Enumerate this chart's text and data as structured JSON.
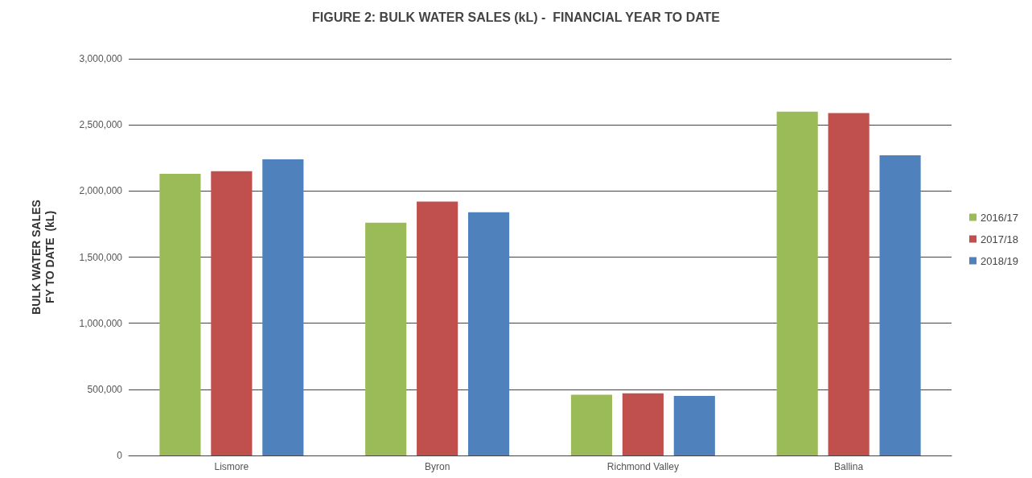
{
  "chart_data": {
    "type": "bar",
    "title": "FIGURE 2: BULK WATER SALES (kL) -  FINANCIAL YEAR TO DATE",
    "ylabel": "BULK WATER SALES\nFY TO DATE  (kL)",
    "categories": [
      "Lismore",
      "Byron",
      "Richmond Valley",
      "Ballina"
    ],
    "series": [
      {
        "name": "2016/17",
        "color": "#9bbb59",
        "values": [
          2130000,
          1760000,
          460000,
          2600000
        ]
      },
      {
        "name": "2017/18",
        "color": "#c0504d",
        "values": [
          2150000,
          1920000,
          470000,
          2590000
        ]
      },
      {
        "name": "2018/19",
        "color": "#4f81bd",
        "values": [
          2240000,
          1840000,
          450000,
          2270000
        ]
      }
    ],
    "ylim": [
      0,
      3000000
    ],
    "yticks": [
      {
        "value": 0,
        "label": "0"
      },
      {
        "value": 500000,
        "label": "500,000"
      },
      {
        "value": 1000000,
        "label": "1,000,000"
      },
      {
        "value": 1500000,
        "label": "1,500,000"
      },
      {
        "value": 2000000,
        "label": "2,000,000"
      },
      {
        "value": 2500000,
        "label": "2,500,000"
      },
      {
        "value": 3000000,
        "label": "3,000,000"
      }
    ],
    "grid": true,
    "legend": "right"
  }
}
